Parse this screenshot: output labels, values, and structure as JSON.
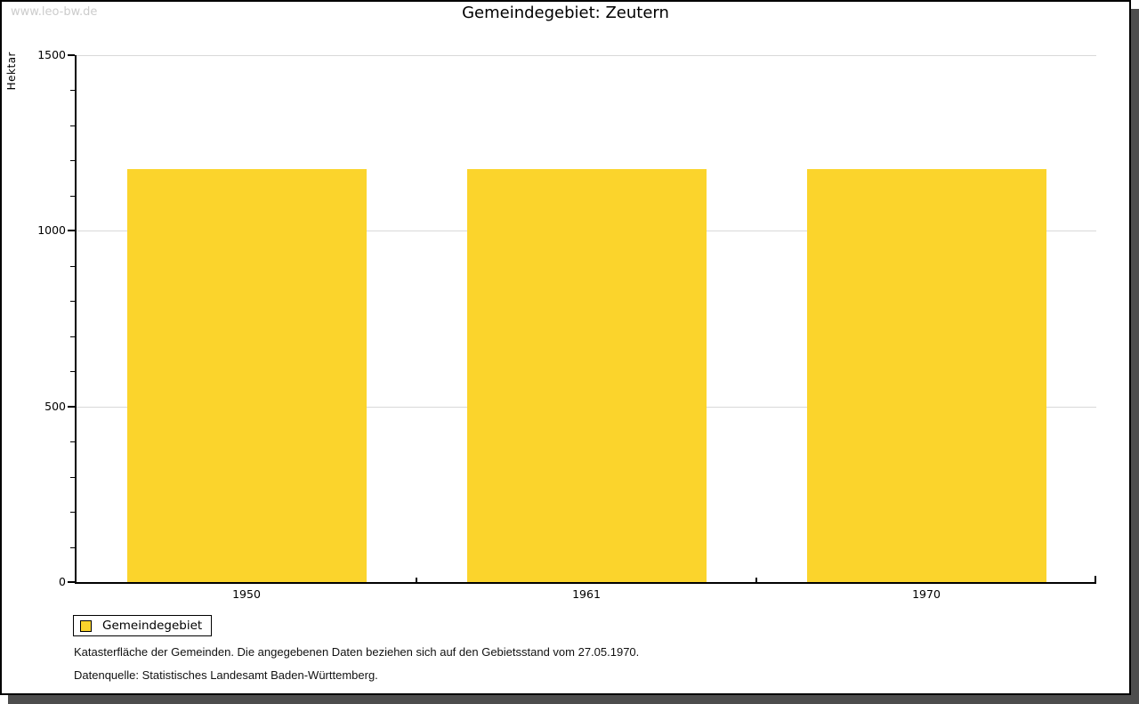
{
  "watermark": "www.leo-bw.de",
  "chart_data": {
    "type": "bar",
    "title": "Gemeindegebiet: Zeutern",
    "ylabel": "Hektar",
    "xlabel": "",
    "categories": [
      "1950",
      "1961",
      "1970"
    ],
    "series": [
      {
        "name": "Gemeindegebiet",
        "values": [
          1176,
          1176,
          1176
        ]
      }
    ],
    "ylim": [
      0,
      1500
    ],
    "yticks": [
      0,
      500,
      1000,
      1500
    ],
    "minor_tick_step": 100,
    "gridlines": "horizontal at major ticks",
    "legend_position": "bottom-left",
    "bar_color": "#FBD42C"
  },
  "legend": {
    "items": [
      {
        "label": "Gemeindegebiet",
        "color": "#FBD42C"
      }
    ]
  },
  "captions": {
    "line1": "Katasterfläche der Gemeinden. Die angegebenen Daten beziehen sich auf den Gebietsstand vom 27.05.1970.",
    "line2": "Datenquelle: Statistisches Landesamt Baden-Württemberg."
  },
  "colors": {
    "bar": "#FBD42C",
    "axis": "#000000",
    "grid": "#d9d9d9",
    "frame_shadow": "#4d4d4d",
    "watermark": "#cccccc"
  }
}
